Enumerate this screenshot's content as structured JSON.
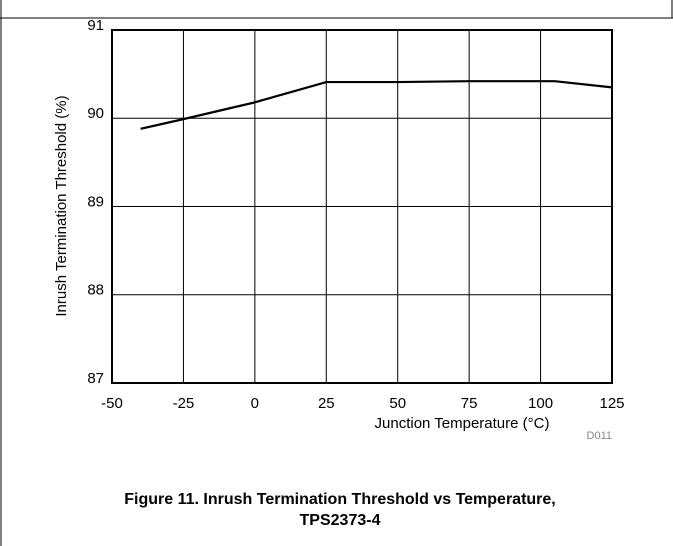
{
  "chart_data": {
    "type": "line",
    "title": [
      "Figure 11. Inrush Termination Threshold vs Temperature,",
      "TPS2373-4"
    ],
    "xlabel": "Junction Temperature (°C)",
    "ylabel": "Inrush Termination Threshold (%)",
    "annotation": "D011",
    "x": [
      -40,
      -25,
      0,
      25,
      50,
      75,
      105,
      125
    ],
    "series": [
      {
        "color": "#000000",
        "values": [
          89.88,
          89.99,
          90.18,
          90.41,
          90.41,
          90.42,
          90.42,
          90.35
        ]
      }
    ],
    "xlim": [
      -50,
      125
    ],
    "xticks": [
      -50,
      -25,
      0,
      25,
      50,
      75,
      100,
      125
    ],
    "ylim": [
      87,
      91
    ],
    "yticks": [
      87,
      88,
      89,
      90,
      91
    ],
    "grid": true
  }
}
